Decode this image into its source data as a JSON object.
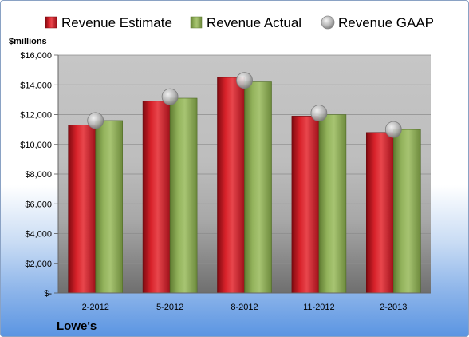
{
  "chart_data": {
    "type": "bar",
    "company": "Lowe's",
    "ylabel": "$millions",
    "categories": [
      "2-2012",
      "5-2012",
      "8-2012",
      "11-2012",
      "2-2013"
    ],
    "series": [
      {
        "name": "Revenue Estimate",
        "kind": "bar",
        "color": "#c8141c",
        "values": [
          11300,
          12900,
          14500,
          11900,
          10800
        ]
      },
      {
        "name": "Revenue Actual",
        "kind": "bar",
        "color": "#8aab55",
        "values": [
          11600,
          13100,
          14200,
          12000,
          11000
        ]
      },
      {
        "name": "Revenue GAAP",
        "kind": "marker",
        "color": "#b8b8b8",
        "values": [
          11600,
          13200,
          14300,
          12100,
          11000
        ]
      }
    ],
    "ylim": [
      0,
      16000
    ],
    "yticks": [
      0,
      2000,
      4000,
      6000,
      8000,
      10000,
      12000,
      14000,
      16000
    ],
    "ytick_labels": [
      "$-",
      "$2,000",
      "$4,000",
      "$6,000",
      "$8,000",
      "$10,000",
      "$12,000",
      "$14,000",
      "$16,000"
    ],
    "grid": true,
    "legend_position": "top"
  }
}
